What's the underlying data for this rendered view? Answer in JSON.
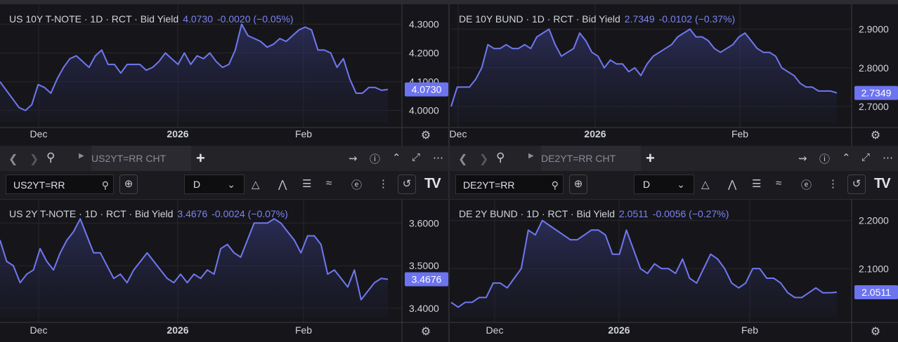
{
  "colors": {
    "line": "#7078f0",
    "price_bg": "#6c74ef",
    "bg": "#16161a",
    "grid": "#26262c"
  },
  "panes": [
    {
      "id": "us",
      "toolbar": {
        "ric_tab": "US2YT=RR CHT",
        "symbol_input": "US2YT=RR",
        "interval": "D"
      },
      "charts": [
        {
          "legend_title": "US 10Y T-NOTE · 1D · RCT · Bid Yield",
          "legend_value": "4.0730",
          "legend_change": "-0.0020 (−0.05%)",
          "price_label": "4.0730",
          "x_labels": [
            "Dec",
            "2026",
            "Feb"
          ],
          "y_labels": [
            "4.3000",
            "4.2000",
            "4.1000",
            "4.0000"
          ]
        },
        {
          "legend_title": "US 2Y T-NOTE · 1D · RCT · Bid Yield",
          "legend_value": "3.4676",
          "legend_change": "-0.0024 (−0.07%)",
          "price_label": "3.4676",
          "x_labels": [
            "Dec",
            "2026",
            "Feb"
          ],
          "y_labels": [
            "3.6000",
            "3.5000",
            "3.4000"
          ]
        }
      ]
    },
    {
      "id": "de",
      "toolbar": {
        "ric_tab": "DE2YT=RR CHT",
        "symbol_input": "DE2YT=RR",
        "interval": "D"
      },
      "charts": [
        {
          "legend_title": "DE 10Y BUND · 1D · RCT · Bid Yield",
          "legend_value": "2.7349",
          "legend_change": "-0.0102 (−0.37%)",
          "price_label": "2.7349",
          "x_labels": [
            "Dec",
            "2026",
            "Feb"
          ],
          "y_labels": [
            "2.9000",
            "2.8000",
            "2.7000"
          ]
        },
        {
          "legend_title": "DE 2Y BUND · 1D · RCT · Bid Yield",
          "legend_value": "2.0511",
          "legend_change": "-0.0056 (−0.27%)",
          "price_label": "2.0511",
          "x_labels": [
            "Dec",
            "2026",
            "Feb"
          ],
          "y_labels": [
            "2.2000",
            "2.1000"
          ]
        }
      ]
    }
  ],
  "chart_data": [
    {
      "type": "area",
      "title": "US 10Y T-NOTE · 1D · RCT · Bid Yield",
      "ylim": [
        3.96,
        4.35
      ],
      "y": [
        4.1,
        4.07,
        4.04,
        4.01,
        4.0,
        4.02,
        4.09,
        4.08,
        4.06,
        4.11,
        4.15,
        4.18,
        4.19,
        4.17,
        4.15,
        4.19,
        4.21,
        4.16,
        4.16,
        4.13,
        4.16,
        4.16,
        4.16,
        4.14,
        4.15,
        4.17,
        4.2,
        4.18,
        4.16,
        4.2,
        4.16,
        4.19,
        4.18,
        4.2,
        4.17,
        4.15,
        4.16,
        4.21,
        4.3,
        4.26,
        4.25,
        4.24,
        4.22,
        4.23,
        4.25,
        4.24,
        4.26,
        4.28,
        4.29,
        4.28,
        4.21,
        4.21,
        4.2,
        4.15,
        4.18,
        4.11,
        4.06,
        4.06,
        4.08,
        4.08,
        4.07,
        4.073
      ]
    },
    {
      "type": "area",
      "title": "US 2Y T-NOTE · 1D · RCT · Bid Yield",
      "ylim": [
        3.38,
        3.64
      ],
      "y": [
        3.56,
        3.51,
        3.5,
        3.46,
        3.48,
        3.49,
        3.54,
        3.51,
        3.49,
        3.53,
        3.56,
        3.58,
        3.61,
        3.57,
        3.53,
        3.53,
        3.5,
        3.47,
        3.48,
        3.46,
        3.49,
        3.51,
        3.53,
        3.51,
        3.49,
        3.47,
        3.46,
        3.48,
        3.46,
        3.48,
        3.47,
        3.49,
        3.48,
        3.54,
        3.55,
        3.53,
        3.52,
        3.56,
        3.6,
        3.6,
        3.6,
        3.61,
        3.6,
        3.58,
        3.56,
        3.53,
        3.57,
        3.57,
        3.55,
        3.48,
        3.49,
        3.47,
        3.45,
        3.49,
        3.42,
        3.44,
        3.46,
        3.47,
        3.468
      ]
    },
    {
      "type": "area",
      "title": "DE 10Y BUND · 1D · RCT · Bid Yield",
      "ylim": [
        2.66,
        2.95
      ],
      "y": [
        2.7,
        2.75,
        2.75,
        2.75,
        2.77,
        2.8,
        2.86,
        2.85,
        2.85,
        2.86,
        2.85,
        2.85,
        2.86,
        2.85,
        2.88,
        2.89,
        2.9,
        2.86,
        2.83,
        2.84,
        2.85,
        2.89,
        2.87,
        2.84,
        2.83,
        2.8,
        2.82,
        2.81,
        2.81,
        2.79,
        2.8,
        2.78,
        2.81,
        2.83,
        2.84,
        2.85,
        2.86,
        2.88,
        2.89,
        2.9,
        2.88,
        2.88,
        2.87,
        2.85,
        2.84,
        2.85,
        2.86,
        2.88,
        2.89,
        2.87,
        2.85,
        2.84,
        2.84,
        2.83,
        2.8,
        2.79,
        2.78,
        2.76,
        2.75,
        2.75,
        2.74,
        2.74,
        2.74,
        2.735
      ]
    },
    {
      "type": "area",
      "title": "DE 2Y BUND · 1D · RCT · Bid Yield",
      "ylim": [
        2.0,
        2.23
      ],
      "y": [
        2.03,
        2.02,
        2.03,
        2.03,
        2.04,
        2.04,
        2.07,
        2.07,
        2.06,
        2.08,
        2.1,
        2.18,
        2.17,
        2.2,
        2.19,
        2.18,
        2.17,
        2.16,
        2.16,
        2.17,
        2.18,
        2.18,
        2.17,
        2.13,
        2.13,
        2.18,
        2.14,
        2.1,
        2.09,
        2.11,
        2.1,
        2.1,
        2.09,
        2.12,
        2.08,
        2.07,
        2.1,
        2.13,
        2.12,
        2.1,
        2.07,
        2.06,
        2.07,
        2.1,
        2.1,
        2.08,
        2.08,
        2.07,
        2.05,
        2.04,
        2.04,
        2.05,
        2.06,
        2.05,
        2.05,
        2.051
      ]
    }
  ]
}
